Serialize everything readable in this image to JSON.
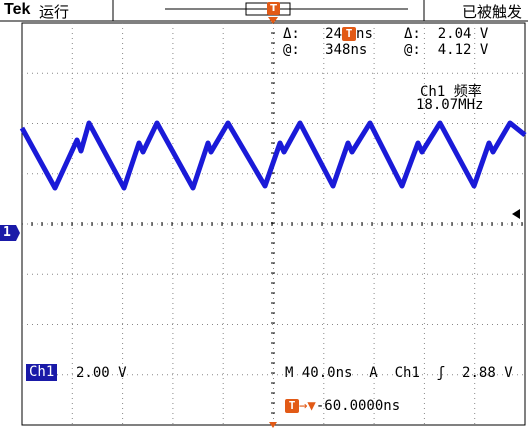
{
  "header": {
    "brand": "Tek",
    "run_mode": "运行",
    "trigger_status": "已被触发",
    "trigger_marker_label": "T"
  },
  "cursors": {
    "delta_time": "24",
    "delta_time_unit": "ns",
    "at_time": "348ns",
    "delta_volt": "2.04 V",
    "at_volt": "4.12 V",
    "delta_symbol": "Δ:",
    "at_symbol": "@:"
  },
  "measurement": {
    "label": "Ch1 频率",
    "value": "18.07MHz"
  },
  "channel": {
    "marker": "1",
    "name": "Ch1",
    "scale": "2.00 V",
    "color": "#1a1ad8"
  },
  "timebase": {
    "text": "M 40.0ns",
    "trigger_mode": "A",
    "trigger_source": "Ch1",
    "trigger_level": "2.88 V"
  },
  "trigger_offset": {
    "arrow": "→▼",
    "value": "-60.0000ns"
  }
}
